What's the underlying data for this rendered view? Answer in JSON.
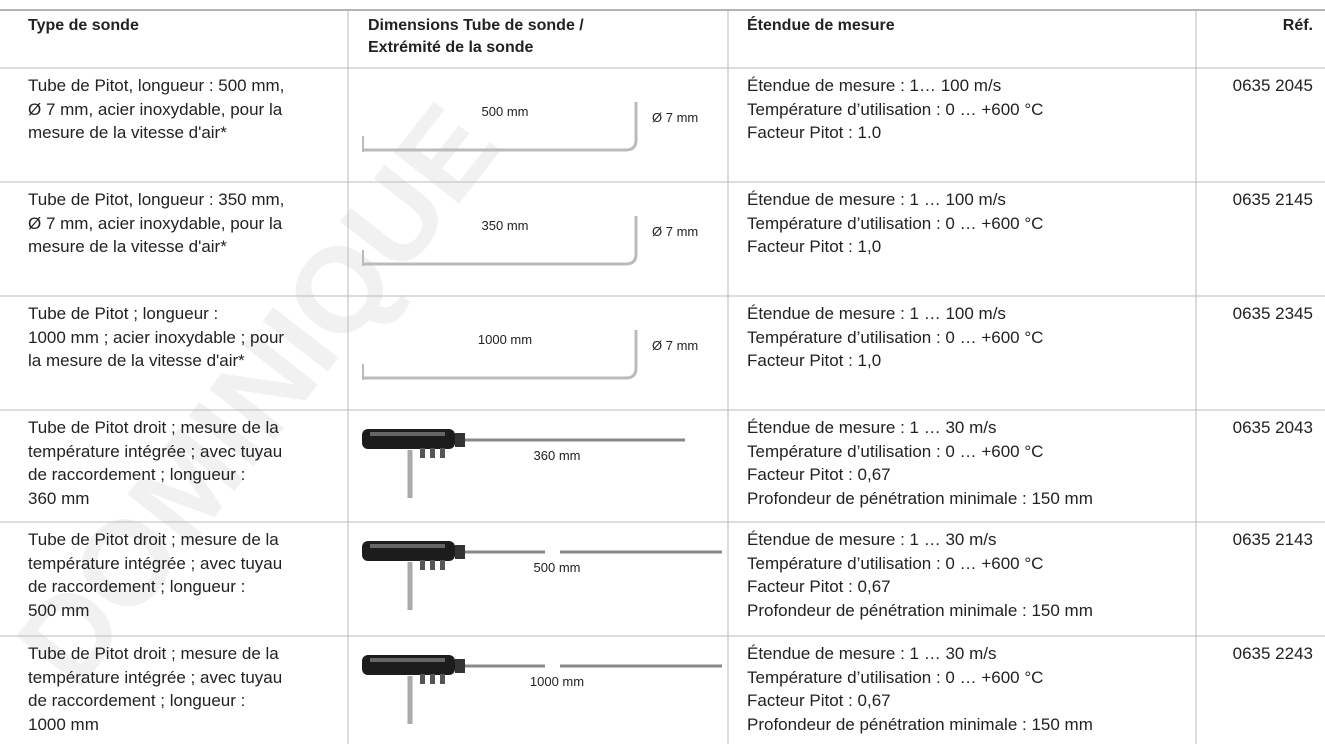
{
  "watermark": "DOMINIQUE",
  "table": {
    "header": [
      [
        "Type de sonde"
      ],
      [
        "Dimensions Tube de sonde /",
        "Extrémité de la sonde"
      ],
      [
        "Étendue de mesure"
      ],
      [
        "Réf."
      ]
    ],
    "rows": [
      {
        "type": [
          "Tube de Pitot, longueur : 500 mm,",
          "Ø 7 mm, acier inoxydable, pour la",
          "mesure de la vitesse d'air*"
        ],
        "diagram": {
          "length": "500 mm",
          "diameter": "Ø 7 mm"
        },
        "range": [
          "Étendue de mesure : 1… 100 m/s",
          "Température d’utilisation : 0 … +600 °C",
          "Facteur Pitot : 1.0"
        ],
        "ref": "0635 2045"
      },
      {
        "type": [
          "Tube de Pitot, longueur : 350 mm,",
          "Ø 7 mm, acier inoxydable, pour la",
          "mesure de la vitesse d'air*"
        ],
        "diagram": {
          "length": "350 mm",
          "diameter": "Ø 7 mm"
        },
        "range": [
          "Étendue de mesure : 1 … 100 m/s",
          "Température d’utilisation : 0 … +600 °C",
          "Facteur Pitot : 1,0"
        ],
        "ref": "0635 2145"
      },
      {
        "type": [
          "Tube de Pitot ; longueur :",
          "1000 mm ; acier inoxydable ; pour",
          "la mesure de la vitesse d'air*"
        ],
        "diagram": {
          "length": "1000 mm",
          "diameter": "Ø 7 mm"
        },
        "range": [
          "Étendue de mesure : 1 … 100 m/s",
          "Température d’utilisation : 0 … +600 °C",
          "Facteur Pitot : 1,0"
        ],
        "ref": "0635 2345"
      },
      {
        "type": [
          "Tube de Pitot droit ; mesure de la",
          "température intégrée ; avec tuyau",
          "de raccordement ; longueur :",
          "360 mm"
        ],
        "diagram": {
          "length": "360 mm"
        },
        "range": [
          "Étendue de mesure : 1 … 30 m/s",
          "Température d’utilisation : 0 … +600 °C",
          "Facteur Pitot : 0,67",
          "Profondeur de pénétration minimale : 150 mm"
        ],
        "ref": "0635 2043"
      },
      {
        "type": [
          "Tube de Pitot droit ; mesure de la",
          "température intégrée ; avec tuyau",
          "de raccordement ; longueur :",
          "500 mm"
        ],
        "diagram": {
          "length": "500 mm"
        },
        "range": [
          "Étendue de mesure : 1 … 30 m/s",
          "Température d’utilisation : 0 … +600 °C",
          "Facteur Pitot : 0,67",
          "Profondeur de pénétration minimale : 150 mm"
        ],
        "ref": "0635 2143"
      },
      {
        "type": [
          "Tube de Pitot droit ; mesure de la",
          "température intégrée ; avec tuyau",
          "de raccordement ; longueur :",
          "1000 mm"
        ],
        "diagram": {
          "length": "1000 mm"
        },
        "range": [
          "Étendue de mesure : 1 … 30 m/s",
          "Température d’utilisation : 0 … +600 °C",
          "Facteur Pitot : 0,67",
          "Profondeur de pénétration minimale : 150 mm"
        ],
        "ref": "0635 2243"
      }
    ]
  }
}
